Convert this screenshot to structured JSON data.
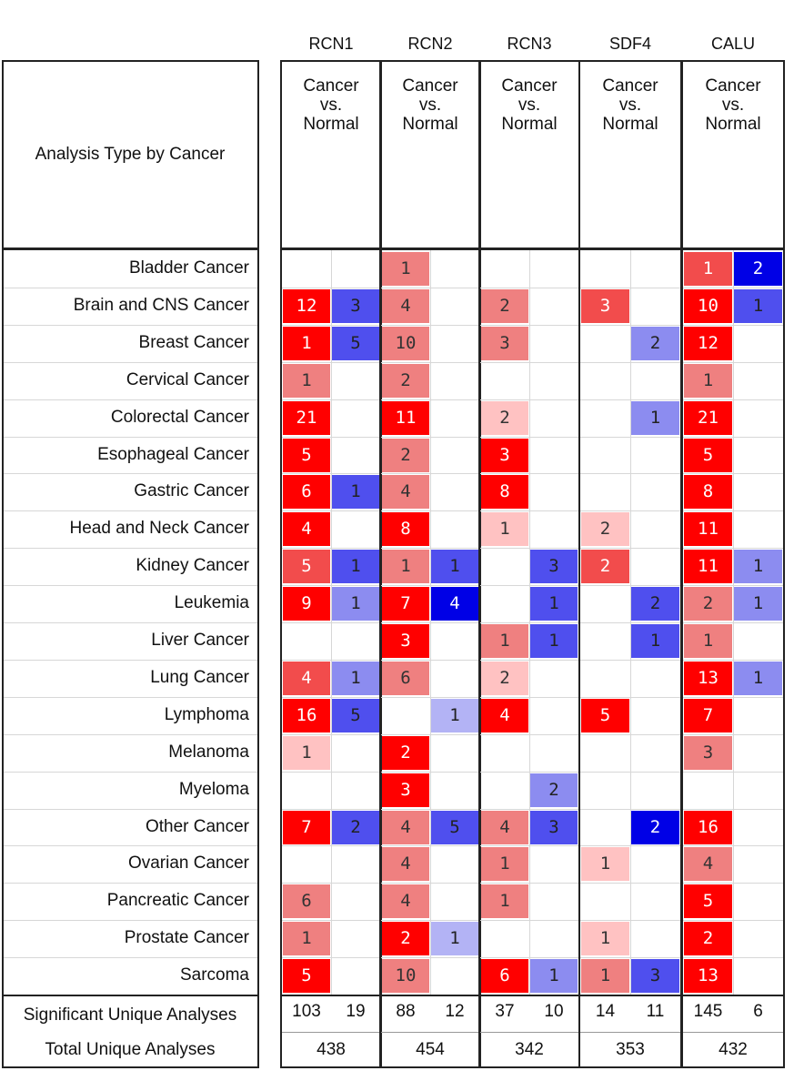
{
  "chart_data": {
    "type": "heatmap",
    "genes": [
      "RCN1",
      "RCN2",
      "RCN3",
      "SDF4",
      "CALU"
    ],
    "analysis_header": "Analysis Type by Cancer",
    "comparison_label": "Cancer\nvs.\nNormal",
    "cancer_types": [
      "Bladder Cancer",
      "Brain and CNS Cancer",
      "Breast Cancer",
      "Cervical Cancer",
      "Colorectal Cancer",
      "Esophageal Cancer",
      "Gastric Cancer",
      "Head and Neck Cancer",
      "Kidney Cancer",
      "Leukemia",
      "Liver Cancer",
      "Lung Cancer",
      "Lymphoma",
      "Melanoma",
      "Myeloma",
      "Other Cancer",
      "Ovarian Cancer",
      "Pancreatic Cancer",
      "Prostate Cancer",
      "Sarcoma"
    ],
    "up_counts": [
      [
        null,
        12,
        1,
        1,
        21,
        5,
        6,
        4,
        5,
        9,
        null,
        4,
        16,
        1,
        null,
        7,
        null,
        6,
        1,
        5
      ],
      [
        1,
        4,
        10,
        2,
        11,
        2,
        4,
        8,
        1,
        7,
        3,
        6,
        null,
        2,
        3,
        4,
        4,
        4,
        2,
        10
      ],
      [
        null,
        2,
        3,
        null,
        2,
        3,
        8,
        1,
        null,
        null,
        1,
        2,
        4,
        null,
        null,
        4,
        1,
        1,
        null,
        6
      ],
      [
        null,
        3,
        null,
        null,
        null,
        null,
        null,
        2,
        2,
        null,
        null,
        null,
        5,
        null,
        null,
        null,
        1,
        null,
        1,
        1
      ],
      [
        1,
        10,
        12,
        1,
        21,
        5,
        8,
        11,
        11,
        2,
        1,
        13,
        7,
        3,
        null,
        16,
        4,
        5,
        2,
        13
      ]
    ],
    "up_intensity": [
      [
        null,
        4,
        4,
        2,
        4,
        4,
        4,
        4,
        3,
        4,
        null,
        3,
        4,
        1,
        null,
        4,
        null,
        2,
        2,
        4
      ],
      [
        2,
        2,
        2,
        2,
        4,
        2,
        2,
        4,
        2,
        4,
        4,
        2,
        null,
        4,
        4,
        2,
        2,
        2,
        4,
        2
      ],
      [
        null,
        2,
        2,
        null,
        1,
        4,
        4,
        1,
        null,
        null,
        2,
        1,
        4,
        null,
        null,
        2,
        2,
        2,
        null,
        4
      ],
      [
        null,
        3,
        null,
        null,
        null,
        null,
        null,
        1,
        3,
        null,
        null,
        null,
        4,
        null,
        null,
        null,
        1,
        null,
        1,
        2
      ],
      [
        3,
        4,
        4,
        2,
        4,
        4,
        4,
        4,
        4,
        2,
        2,
        4,
        4,
        2,
        null,
        4,
        2,
        4,
        4,
        4
      ]
    ],
    "down_counts": [
      [
        null,
        3,
        5,
        null,
        null,
        null,
        1,
        null,
        1,
        1,
        null,
        1,
        5,
        null,
        null,
        2,
        null,
        null,
        null,
        null
      ],
      [
        null,
        null,
        null,
        null,
        null,
        null,
        null,
        null,
        1,
        4,
        null,
        null,
        1,
        null,
        null,
        5,
        null,
        null,
        1,
        null
      ],
      [
        null,
        null,
        null,
        null,
        null,
        null,
        null,
        null,
        3,
        1,
        1,
        null,
        null,
        null,
        2,
        3,
        null,
        null,
        null,
        1
      ],
      [
        null,
        null,
        2,
        null,
        1,
        null,
        null,
        null,
        null,
        2,
        1,
        null,
        null,
        null,
        null,
        2,
        null,
        null,
        null,
        3
      ],
      [
        2,
        1,
        null,
        null,
        null,
        null,
        null,
        null,
        1,
        1,
        null,
        1,
        null,
        null,
        null,
        null,
        null,
        null,
        null,
        null
      ]
    ],
    "down_intensity": [
      [
        null,
        3,
        3,
        null,
        null,
        null,
        3,
        null,
        3,
        2,
        null,
        2,
        3,
        null,
        null,
        3,
        null,
        null,
        null,
        null
      ],
      [
        null,
        null,
        null,
        null,
        null,
        null,
        null,
        null,
        3,
        4,
        null,
        null,
        1,
        null,
        null,
        3,
        null,
        null,
        1,
        null
      ],
      [
        null,
        null,
        null,
        null,
        null,
        null,
        null,
        null,
        3,
        3,
        3,
        null,
        null,
        null,
        2,
        3,
        null,
        null,
        null,
        2
      ],
      [
        null,
        null,
        2,
        null,
        2,
        null,
        null,
        null,
        null,
        3,
        3,
        null,
        null,
        null,
        null,
        4,
        null,
        null,
        null,
        3
      ],
      [
        4,
        3,
        null,
        null,
        null,
        null,
        null,
        null,
        2,
        2,
        null,
        2,
        null,
        null,
        null,
        null,
        null,
        null,
        null,
        null
      ]
    ],
    "significant_label": "Significant Unique Analyses",
    "significant_unique": [
      [
        103,
        19
      ],
      [
        88,
        12
      ],
      [
        37,
        10
      ],
      [
        14,
        11
      ],
      [
        145,
        6
      ]
    ],
    "total_label": "Total Unique Analyses",
    "total_unique": [
      438,
      454,
      342,
      353,
      432
    ],
    "colors": {
      "up": [
        "#ffc2c2",
        "#ef8080",
        "#f24c4c",
        "#ff0000"
      ],
      "down": [
        "#b3b3f5",
        "#8c8cf0",
        "#4f4fee",
        "#0000e6"
      ]
    }
  }
}
